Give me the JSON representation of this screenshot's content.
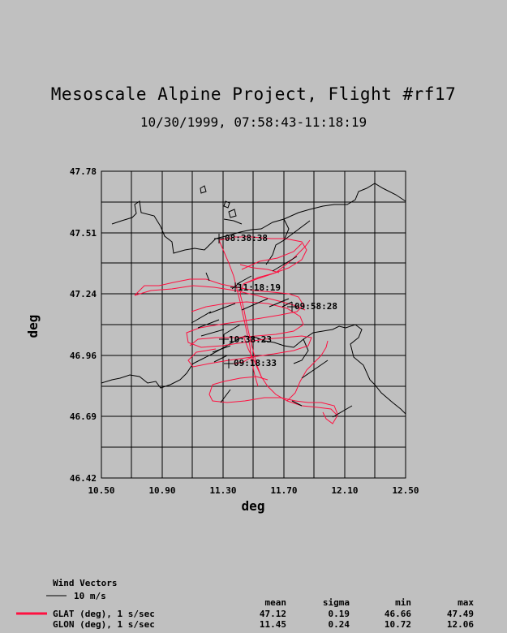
{
  "header": {
    "title": "Mesoscale Alpine Project, Flight #rf17",
    "subtitle": "10/30/1999, 07:58:43-11:18:19"
  },
  "axes": {
    "xlabel": "deg",
    "ylabel": "deg",
    "x_ticks": [
      "10.50",
      "10.90",
      "11.30",
      "11.70",
      "12.10",
      "12.50"
    ],
    "y_ticks": [
      "47.78",
      "47.51",
      "47.24",
      "46.96",
      "46.69",
      "46.42"
    ],
    "x_range": [
      10.5,
      12.5
    ],
    "y_range": [
      46.42,
      47.78
    ]
  },
  "annotations": [
    "08:38:38",
    "11:18:19",
    "09:58:28",
    "10:38:23",
    "09:18:33"
  ],
  "legend": {
    "wind_title": "Wind Vectors",
    "wind_scale": "10 m/s",
    "stats_headers": [
      "mean",
      "sigma",
      "min",
      "max"
    ],
    "rows": [
      {
        "label": "GLAT (deg), 1 s/sec",
        "mean": "47.12",
        "sigma": "0.19",
        "min": "46.66",
        "max": "47.49",
        "color": "#ff1040"
      },
      {
        "label": "GLON (deg), 1 s/sec",
        "mean": "11.45",
        "sigma": "0.24",
        "min": "10.72",
        "max": "12.06"
      }
    ]
  },
  "colors": {
    "track": "#ff1040",
    "background": "#c0c0c0"
  }
}
